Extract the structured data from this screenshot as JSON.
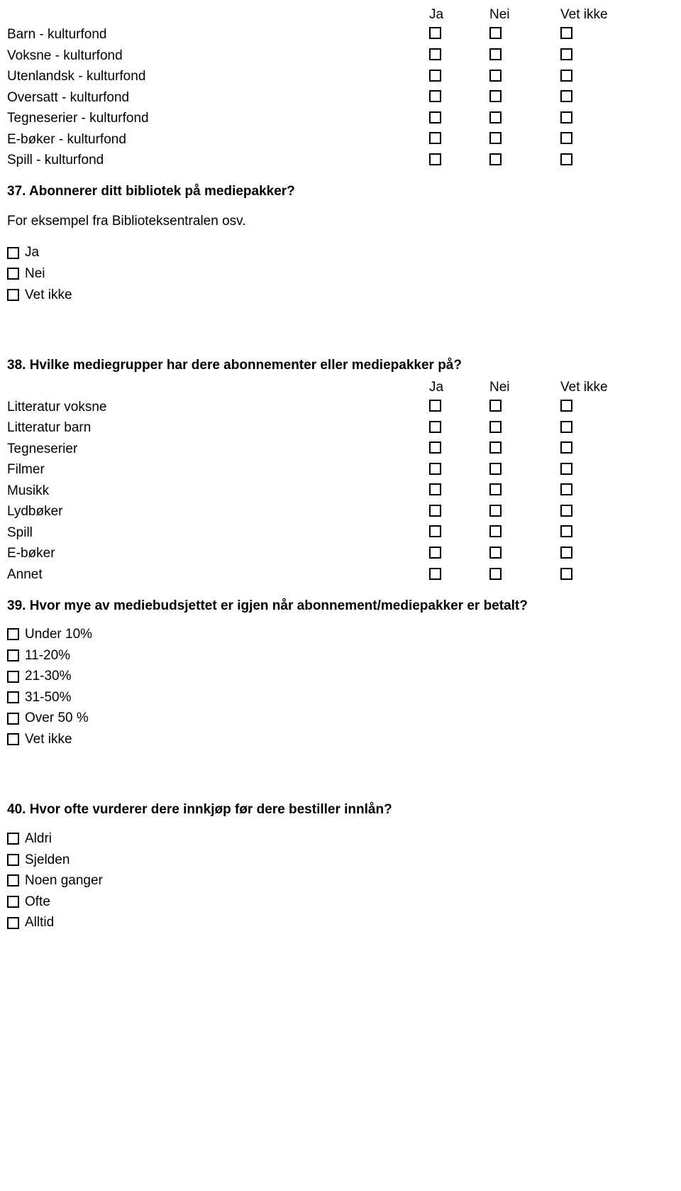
{
  "q36_table": {
    "headers": [
      "Ja",
      "Nei",
      "Vet ikke"
    ],
    "rows": [
      "Barn - kulturfond",
      "Voksne - kulturfond",
      "Utenlandsk - kulturfond",
      "Oversatt - kulturfond",
      "Tegneserier - kulturfond",
      "E-bøker - kulturfond",
      "Spill - kulturfond"
    ]
  },
  "q37": {
    "title": "37. Abonnerer ditt bibliotek på mediepakker?",
    "sub": "For eksempel fra Biblioteksentralen osv.",
    "options": [
      "Ja",
      "Nei",
      "Vet ikke"
    ]
  },
  "q38": {
    "title": "38. Hvilke mediegrupper har dere abonnementer eller mediepakker på?",
    "headers": [
      "Ja",
      "Nei",
      "Vet ikke"
    ],
    "rows": [
      "Litteratur voksne",
      "Litteratur barn",
      "Tegneserier",
      "Filmer",
      "Musikk",
      "Lydbøker",
      "Spill",
      "E-bøker",
      "Annet"
    ]
  },
  "q39": {
    "title": "39. Hvor mye av mediebudsjettet er igjen når abonnement/mediepakker er betalt?",
    "options": [
      "Under 10%",
      "11-20%",
      "21-30%",
      "31-50%",
      "Over 50 %",
      "Vet ikke"
    ]
  },
  "q40": {
    "title": "40. Hvor ofte vurderer dere innkjøp før dere bestiller innlån?",
    "options": [
      "Aldri",
      "Sjelden",
      "Noen ganger",
      "Ofte",
      "Alltid"
    ]
  }
}
